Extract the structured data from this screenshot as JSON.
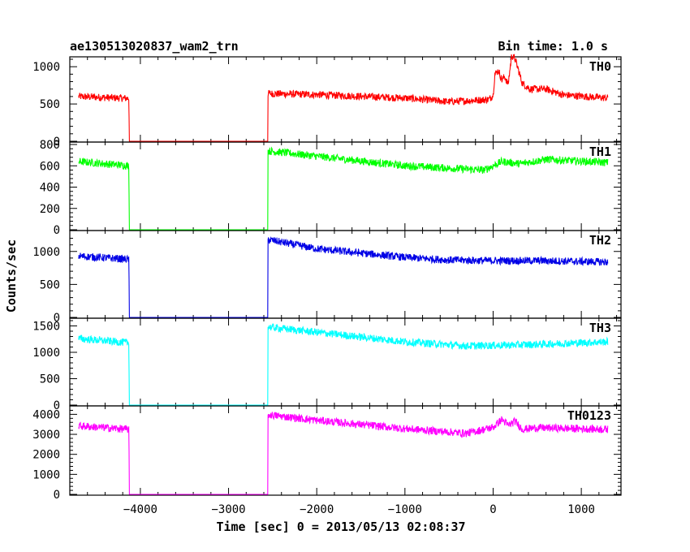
{
  "header": {
    "title": "ae130513020837_wam2_trn",
    "bin_time": "Bin time: 1.0 s"
  },
  "chart_data": {
    "type": "line",
    "title": "ae130513020837_wam2_trn",
    "subtitle": "Bin time: 1.0 s",
    "xlabel": "Time [sec] 0 = 2013/05/13 02:08:37",
    "ylabel": "Counts/sec",
    "xlim": [
      -4800,
      1450
    ],
    "x_ticks": [
      -4000,
      -3000,
      -2000,
      -1000,
      0,
      1000
    ],
    "x_tick_labels": [
      "−4000",
      "−3000",
      "−2000",
      "−1000",
      "0",
      "1000"
    ],
    "panels": [
      {
        "name": "TH0",
        "color": "#ff0000",
        "ylim": [
          0,
          1100
        ],
        "y_ticks": [
          0,
          500,
          1000
        ],
        "keypoints": [
          [
            -4700,
            600
          ],
          [
            -4130,
            575
          ],
          [
            -4125,
            0
          ],
          [
            -2560,
            0
          ],
          [
            -2555,
            640
          ],
          [
            -2000,
            625
          ],
          [
            -1000,
            580
          ],
          [
            -500,
            530
          ],
          [
            -50,
            560
          ],
          [
            0,
            620
          ],
          [
            20,
            900
          ],
          [
            60,
            950
          ],
          [
            100,
            820
          ],
          [
            130,
            870
          ],
          [
            170,
            760
          ],
          [
            210,
            1150
          ],
          [
            250,
            1100
          ],
          [
            330,
            780
          ],
          [
            420,
            700
          ],
          [
            600,
            700
          ],
          [
            800,
            620
          ],
          [
            1300,
            580
          ]
        ]
      },
      {
        "name": "TH1",
        "color": "#00ff00",
        "ylim": [
          0,
          800
        ],
        "y_ticks": [
          0,
          200,
          400,
          600,
          800
        ],
        "keypoints": [
          [
            -4700,
            640
          ],
          [
            -4130,
            600
          ],
          [
            -4125,
            0
          ],
          [
            -2560,
            0
          ],
          [
            -2555,
            740
          ],
          [
            -2000,
            690
          ],
          [
            -1000,
            600
          ],
          [
            -100,
            560
          ],
          [
            0,
            600
          ],
          [
            100,
            640
          ],
          [
            300,
            620
          ],
          [
            600,
            660
          ],
          [
            1300,
            630
          ]
        ]
      },
      {
        "name": "TH2",
        "color": "#0000e6",
        "ylim": [
          0,
          1280
        ],
        "y_ticks": [
          0,
          500,
          1000
        ],
        "keypoints": [
          [
            -4700,
            930
          ],
          [
            -4130,
            880
          ],
          [
            -4125,
            0
          ],
          [
            -2560,
            0
          ],
          [
            -2555,
            1180
          ],
          [
            -2000,
            1040
          ],
          [
            -1000,
            910
          ],
          [
            -500,
            870
          ],
          [
            0,
            860
          ],
          [
            500,
            860
          ],
          [
            1300,
            840
          ]
        ]
      },
      {
        "name": "TH3",
        "color": "#00ffff",
        "ylim": [
          0,
          1600
        ],
        "y_ticks": [
          0,
          500,
          1000,
          1500
        ],
        "keypoints": [
          [
            -4700,
            1260
          ],
          [
            -4130,
            1180
          ],
          [
            -4125,
            0
          ],
          [
            -2560,
            0
          ],
          [
            -2555,
            1480
          ],
          [
            -2000,
            1380
          ],
          [
            -1000,
            1200
          ],
          [
            -300,
            1120
          ],
          [
            0,
            1130
          ],
          [
            500,
            1150
          ],
          [
            1300,
            1200
          ]
        ]
      },
      {
        "name": "TH0123",
        "color": "#ff00ff",
        "ylim": [
          0,
          4300
        ],
        "y_ticks": [
          0,
          1000,
          2000,
          3000,
          4000
        ],
        "keypoints": [
          [
            -4700,
            3420
          ],
          [
            -4130,
            3250
          ],
          [
            -4125,
            0
          ],
          [
            -2560,
            0
          ],
          [
            -2555,
            3980
          ],
          [
            -2000,
            3700
          ],
          [
            -1000,
            3280
          ],
          [
            -300,
            3050
          ],
          [
            0,
            3350
          ],
          [
            100,
            3750
          ],
          [
            170,
            3450
          ],
          [
            250,
            3650
          ],
          [
            330,
            3250
          ],
          [
            500,
            3330
          ],
          [
            1300,
            3250
          ]
        ]
      }
    ]
  }
}
